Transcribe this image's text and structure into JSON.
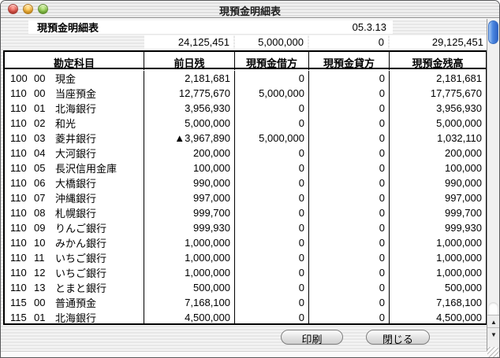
{
  "window": {
    "title": "現預金明細表"
  },
  "header": {
    "report_title": "現預金明細表",
    "date": "05.3.13"
  },
  "totals": {
    "prev": "24,125,451",
    "debit": "5,000,000",
    "credit": "0",
    "balance": "29,125,451"
  },
  "table": {
    "columns": [
      "勘定科目",
      "前日残",
      "現預金借方",
      "現預金貸方",
      "現預金残高"
    ],
    "rows": [
      {
        "code": "100",
        "sub": "00",
        "name": "現金",
        "prev": "2,181,681",
        "debit": "0",
        "credit": "0",
        "balance": "2,181,681"
      },
      {
        "code": "110",
        "sub": "00",
        "name": "当座預金",
        "prev": "12,775,670",
        "debit": "5,000,000",
        "credit": "0",
        "balance": "17,775,670"
      },
      {
        "code": "110",
        "sub": "01",
        "name": "北海銀行",
        "prev": "3,956,930",
        "debit": "0",
        "credit": "0",
        "balance": "3,956,930"
      },
      {
        "code": "110",
        "sub": "02",
        "name": "和光",
        "prev": "5,000,000",
        "debit": "0",
        "credit": "0",
        "balance": "5,000,000"
      },
      {
        "code": "110",
        "sub": "03",
        "name": "菱井銀行",
        "prev": "▲3,967,890",
        "debit": "5,000,000",
        "credit": "0",
        "balance": "1,032,110"
      },
      {
        "code": "110",
        "sub": "04",
        "name": "大河銀行",
        "prev": "200,000",
        "debit": "0",
        "credit": "0",
        "balance": "200,000"
      },
      {
        "code": "110",
        "sub": "05",
        "name": "長沢信用金庫",
        "prev": "100,000",
        "debit": "0",
        "credit": "0",
        "balance": "100,000"
      },
      {
        "code": "110",
        "sub": "06",
        "name": "大橋銀行",
        "prev": "990,000",
        "debit": "0",
        "credit": "0",
        "balance": "990,000"
      },
      {
        "code": "110",
        "sub": "07",
        "name": "沖縄銀行",
        "prev": "997,000",
        "debit": "0",
        "credit": "0",
        "balance": "997,000"
      },
      {
        "code": "110",
        "sub": "08",
        "name": "札幌銀行",
        "prev": "999,700",
        "debit": "0",
        "credit": "0",
        "balance": "999,700"
      },
      {
        "code": "110",
        "sub": "09",
        "name": "りんご銀行",
        "prev": "999,930",
        "debit": "0",
        "credit": "0",
        "balance": "999,930"
      },
      {
        "code": "110",
        "sub": "10",
        "name": "みかん銀行",
        "prev": "1,000,000",
        "debit": "0",
        "credit": "0",
        "balance": "1,000,000"
      },
      {
        "code": "110",
        "sub": "11",
        "name": "いちご銀行",
        "prev": "1,000,000",
        "debit": "0",
        "credit": "0",
        "balance": "1,000,000"
      },
      {
        "code": "110",
        "sub": "12",
        "name": "いちご銀行",
        "prev": "1,000,000",
        "debit": "0",
        "credit": "0",
        "balance": "1,000,000"
      },
      {
        "code": "110",
        "sub": "13",
        "name": "とまと銀行",
        "prev": "500,000",
        "debit": "0",
        "credit": "0",
        "balance": "500,000"
      },
      {
        "code": "115",
        "sub": "00",
        "name": "普通預金",
        "prev": "7,168,100",
        "debit": "0",
        "credit": "0",
        "balance": "7,168,100"
      },
      {
        "code": "115",
        "sub": "01",
        "name": "北海銀行",
        "prev": "4,500,000",
        "debit": "0",
        "credit": "0",
        "balance": "4,500,000"
      }
    ]
  },
  "buttons": {
    "print": "印刷",
    "close": "閉じる"
  },
  "ui": {
    "scroll_up": "▲",
    "scroll_down": "▼",
    "accent_blue": "#4a86e0",
    "negative_mark": "▲"
  }
}
